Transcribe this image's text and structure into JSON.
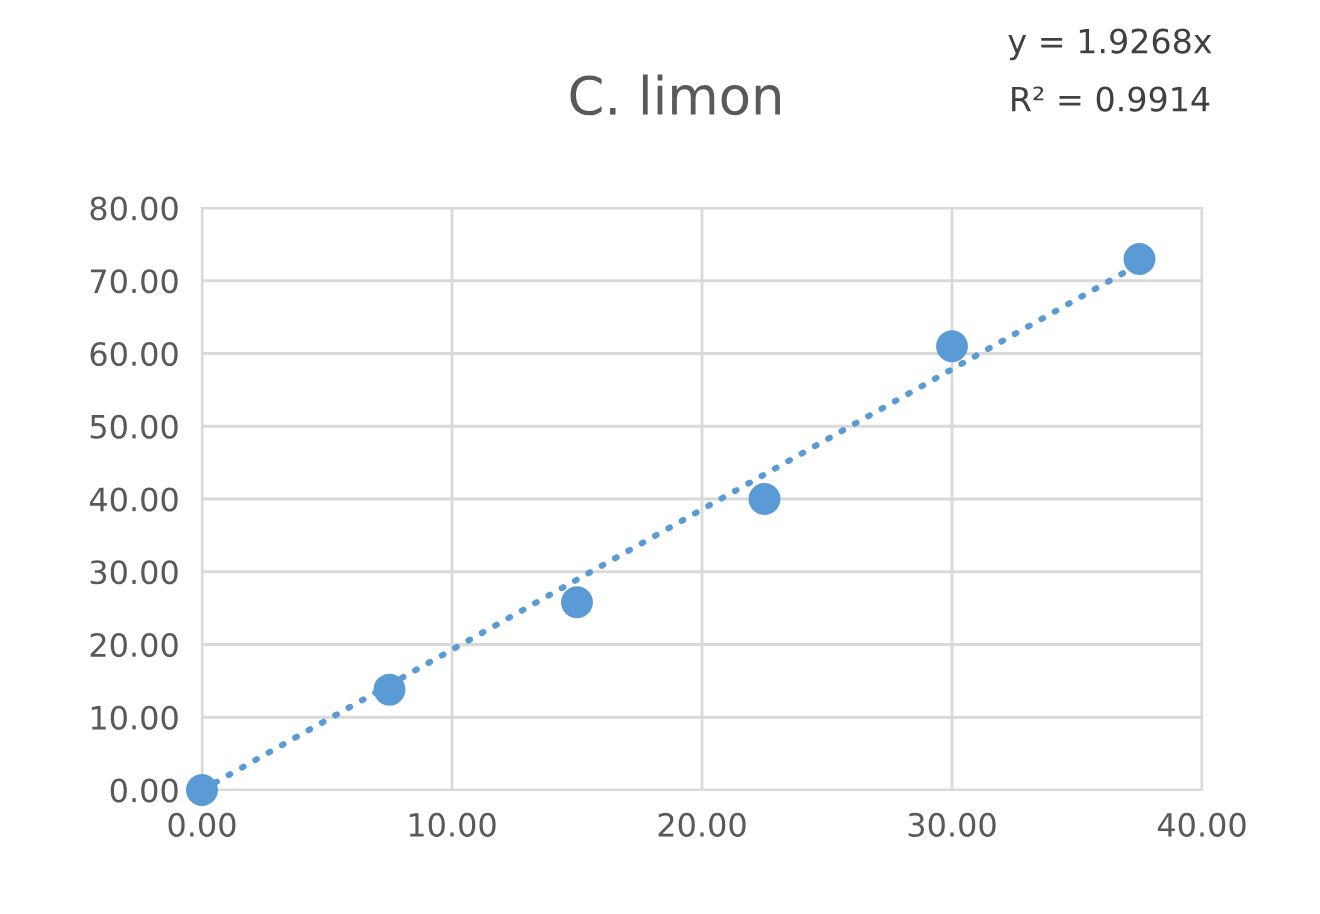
{
  "chart_data": {
    "type": "scatter",
    "title": "C. limon",
    "annotations": [
      "y = 1.9268x",
      "R² = 0.9914"
    ],
    "series": [
      {
        "color": "#5b9bd5",
        "x": [
          0,
          7.5,
          15,
          22.5,
          30,
          37.5
        ],
        "values": [
          0,
          13.8,
          25.8,
          40,
          61,
          73
        ],
        "marker": "circle"
      },
      {
        "type": "line",
        "color": "#5b9bd5",
        "x": [
          0,
          37.5
        ],
        "values": [
          0,
          72.3
        ],
        "line_style": "dotted"
      }
    ],
    "xlim": [
      0,
      40
    ],
    "ylim": [
      0,
      80
    ],
    "xticks": [
      {
        "value": 0,
        "label": "0.00"
      },
      {
        "value": 10,
        "label": "10.00"
      },
      {
        "value": 20,
        "label": "20.00"
      },
      {
        "value": 30,
        "label": "30.00"
      },
      {
        "value": 40,
        "label": "40.00"
      }
    ],
    "yticks": [
      {
        "value": 0,
        "label": "0.00"
      },
      {
        "value": 10,
        "label": "10.00"
      },
      {
        "value": 20,
        "label": "20.00"
      },
      {
        "value": 30,
        "label": "30.00"
      },
      {
        "value": 40,
        "label": "40.00"
      },
      {
        "value": 50,
        "label": "50.00"
      },
      {
        "value": 60,
        "label": "60.00"
      },
      {
        "value": 70,
        "label": "70.00"
      },
      {
        "value": 80,
        "label": "80.00"
      }
    ],
    "grid": true
  }
}
